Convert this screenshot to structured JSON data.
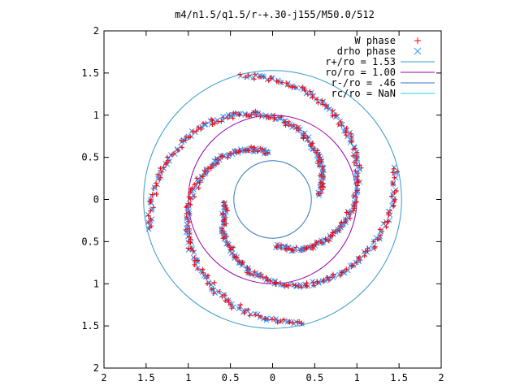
{
  "chart_data": {
    "type": "scatter",
    "title": "m4/n1.5/q1.5/r-+.30-j155/M50.0/512",
    "xlabel": "",
    "ylabel": "",
    "xlim": [
      -2,
      2
    ],
    "ylim": [
      -2,
      2
    ],
    "x_tick_labels": [
      "2",
      "1.5",
      "1",
      "0.5",
      "0",
      "0.5",
      "1",
      "1.5",
      "2"
    ],
    "y_tick_labels": [
      "2",
      "1.5",
      "1",
      "0.5",
      "0",
      "0.5",
      "1",
      "1.5",
      "2"
    ],
    "grid": false,
    "legend_position": "top-right",
    "series": [
      {
        "name": "W phase",
        "marker": "+",
        "color": "#ff0000"
      },
      {
        "name": "drho phase",
        "marker": "x",
        "color": "#3399ff"
      }
    ],
    "circles": [
      {
        "name": "r+/ro = 1.53",
        "radius": 1.53,
        "color": "#3399cc"
      },
      {
        "name": "ro/ro = 1.00",
        "radius": 1.0,
        "color": "#9900aa"
      },
      {
        "name": "r-/ro = .46",
        "radius": 0.46,
        "color": "#3377bb"
      },
      {
        "name": "rc/ro = NaN",
        "radius": null,
        "color": "#33cccc"
      }
    ],
    "spiral_arms": [
      {
        "phase_deg": 95,
        "r_start": 0.55,
        "r_end": 1.5
      },
      {
        "phase_deg": 185,
        "r_start": 0.55,
        "r_end": 1.5
      },
      {
        "phase_deg": 275,
        "r_start": 0.55,
        "r_end": 1.5
      },
      {
        "phase_deg": 5,
        "r_start": 0.55,
        "r_end": 1.5
      }
    ]
  }
}
